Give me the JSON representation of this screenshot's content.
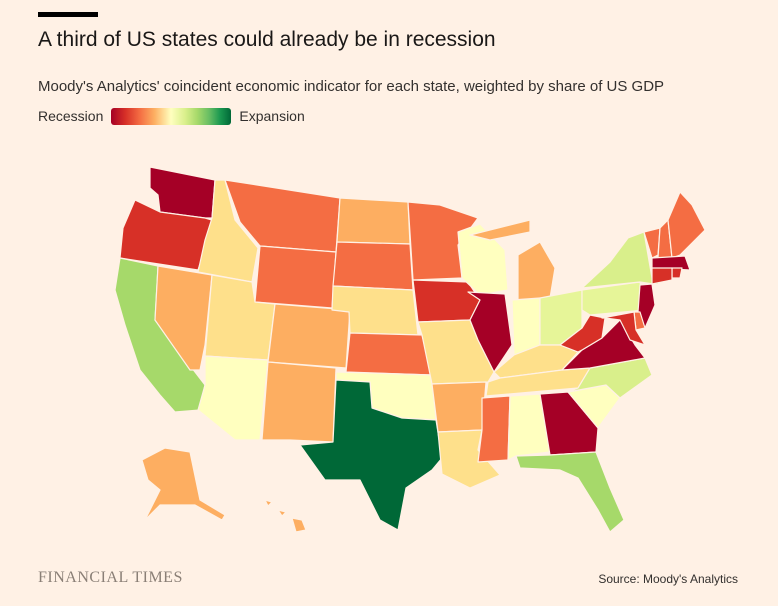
{
  "header": {
    "title": "A third of US states could already be in recession",
    "subtitle": "Moody's Analytics' coincident economic indicator for each state, weighted by share of US GDP"
  },
  "legend": {
    "low_label": "Recession",
    "high_label": "Expansion",
    "scale_colors": [
      "#A50026",
      "#D73027",
      "#F46D43",
      "#FDAE61",
      "#FFFFBF",
      "#D9EF8B",
      "#A6D96A",
      "#66BD63",
      "#1A9850",
      "#006837"
    ]
  },
  "footer": {
    "publisher": "FINANCIAL TIMES",
    "source": "Source: Moody's Analytics"
  },
  "states": {
    "WA": {
      "name": "Washington",
      "color": "#A50026"
    },
    "OR": {
      "name": "Oregon",
      "color": "#D73027"
    },
    "CA": {
      "name": "California",
      "color": "#A6D96A"
    },
    "NV": {
      "name": "Nevada",
      "color": "#FDAE61"
    },
    "ID": {
      "name": "Idaho",
      "color": "#FEE08B"
    },
    "MT": {
      "name": "Montana",
      "color": "#F46D43"
    },
    "WY": {
      "name": "Wyoming",
      "color": "#F46D43"
    },
    "UT": {
      "name": "Utah",
      "color": "#FEE08B"
    },
    "AZ": {
      "name": "Arizona",
      "color": "#FFFFBF"
    },
    "CO": {
      "name": "Colorado",
      "color": "#FDAE61"
    },
    "NM": {
      "name": "New Mexico",
      "color": "#FDAE61"
    },
    "ND": {
      "name": "North Dakota",
      "color": "#FDAE61"
    },
    "SD": {
      "name": "South Dakota",
      "color": "#F46D43"
    },
    "NE": {
      "name": "Nebraska",
      "color": "#FEE08B"
    },
    "KS": {
      "name": "Kansas",
      "color": "#F46D43"
    },
    "OK": {
      "name": "Oklahoma",
      "color": "#FFFFBF"
    },
    "TX": {
      "name": "Texas",
      "color": "#006837"
    },
    "MN": {
      "name": "Minnesota",
      "color": "#F46D43"
    },
    "IA": {
      "name": "Iowa",
      "color": "#D73027"
    },
    "MO": {
      "name": "Missouri",
      "color": "#FEE08B"
    },
    "AR": {
      "name": "Arkansas",
      "color": "#FDAE61"
    },
    "LA": {
      "name": "Louisiana",
      "color": "#FEE08B"
    },
    "WI": {
      "name": "Wisconsin",
      "color": "#FFFFBF"
    },
    "IL": {
      "name": "Illinois",
      "color": "#A50026"
    },
    "MI": {
      "name": "Michigan",
      "color": "#FDAE61"
    },
    "IN": {
      "name": "Indiana",
      "color": "#FFFFBF"
    },
    "OH": {
      "name": "Ohio",
      "color": "#E6F598"
    },
    "KY": {
      "name": "Kentucky",
      "color": "#FEE08B"
    },
    "TN": {
      "name": "Tennessee",
      "color": "#FEE08B"
    },
    "MS": {
      "name": "Mississippi",
      "color": "#F46D43"
    },
    "AL": {
      "name": "Alabama",
      "color": "#FFFFBF"
    },
    "GA": {
      "name": "Georgia",
      "color": "#A50026"
    },
    "FL": {
      "name": "Florida",
      "color": "#A6D96A"
    },
    "SC": {
      "name": "South Carolina",
      "color": "#FFFFBF"
    },
    "NC": {
      "name": "North Carolina",
      "color": "#D9EF8B"
    },
    "VA": {
      "name": "Virginia",
      "color": "#A50026"
    },
    "WV": {
      "name": "West Virginia",
      "color": "#D73027"
    },
    "PA": {
      "name": "Pennsylvania",
      "color": "#E6F598"
    },
    "NY": {
      "name": "New York",
      "color": "#D9EF8B"
    },
    "VT": {
      "name": "Vermont",
      "color": "#F46D43"
    },
    "NH": {
      "name": "New Hampshire",
      "color": "#F46D43"
    },
    "ME": {
      "name": "Maine",
      "color": "#F46D43"
    },
    "MA": {
      "name": "Massachusetts",
      "color": "#A50026"
    },
    "RI": {
      "name": "Rhode Island",
      "color": "#D73027"
    },
    "CT": {
      "name": "Connecticut",
      "color": "#D73027"
    },
    "NJ": {
      "name": "New Jersey",
      "color": "#A50026"
    },
    "DE": {
      "name": "Delaware",
      "color": "#F46D43"
    },
    "MD": {
      "name": "Maryland",
      "color": "#D73027"
    },
    "AK": {
      "name": "Alaska",
      "color": "#FDAE61"
    },
    "HI": {
      "name": "Hawaii",
      "color": "#FDAE61"
    }
  }
}
